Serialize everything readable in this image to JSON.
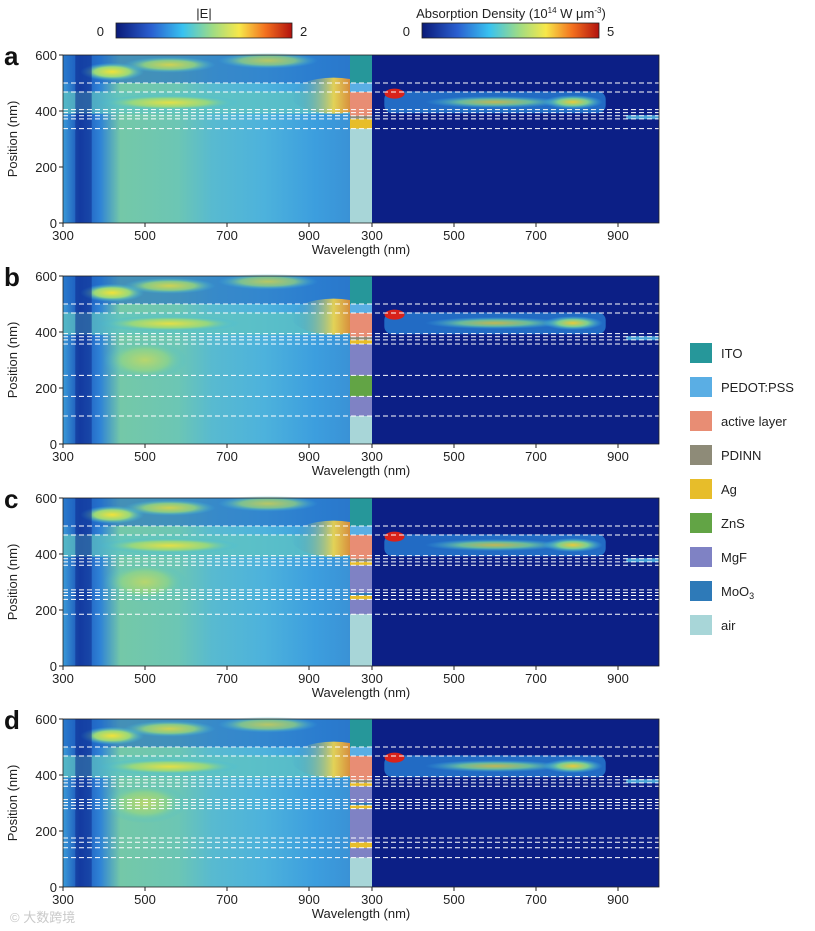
{
  "colorbars": {
    "field": {
      "title": "|E|",
      "min": "0",
      "max": "2"
    },
    "absorption": {
      "title_prefix": "Absorption Density (10",
      "title_exp": "14",
      "title_mid": " W μm",
      "title_exp2": "-3",
      "title_suffix": ")",
      "min": "0",
      "max": "5"
    }
  },
  "legend": [
    {
      "label": "ITO",
      "color": "#26979a"
    },
    {
      "label": "PEDOT:PSS",
      "color": "#5aaee4"
    },
    {
      "label": "active layer",
      "color": "#e88d74"
    },
    {
      "label": "PDINN",
      "color": "#8e8b78"
    },
    {
      "label": "Ag",
      "color": "#e7bd2a"
    },
    {
      "label": "ZnS",
      "color": "#62a445"
    },
    {
      "label": "MgF",
      "color": "#7f82c4"
    },
    {
      "label": "MoO",
      "sub": "3",
      "color": "#2e7ab8"
    },
    {
      "label": "air",
      "color": "#a8d6d8"
    }
  ],
  "watermark": "© 大数跨境",
  "chart_data": [
    {
      "panel": "a",
      "type": "heatmap",
      "xlabel": "Wavelength (nm)",
      "ylabel": "Position (nm)",
      "left_xticks": [
        "300",
        "500",
        "700",
        "900"
      ],
      "right_xticks": [
        "300",
        "500",
        "700",
        "900"
      ],
      "yticks": [
        "0",
        "200",
        "400",
        "600"
      ],
      "xlim": [
        300,
        1000
      ],
      "ylim": [
        0,
        600
      ],
      "interfaces_nm": [
        337,
        372,
        383,
        394,
        405,
        468,
        500
      ],
      "stack": [
        {
          "layer": "air",
          "from": 0,
          "to": 337
        },
        {
          "layer": "Ag",
          "from": 337,
          "to": 372
        },
        {
          "layer": "PDINN",
          "from": 372,
          "to": 383
        },
        {
          "layer": "active layer",
          "from": 383,
          "to": 468
        },
        {
          "layer": "PEDOT:PSS",
          "from": 468,
          "to": 500
        },
        {
          "layer": "ITO",
          "from": 500,
          "to": 600
        }
      ]
    },
    {
      "panel": "b",
      "type": "heatmap",
      "xlabel": "Wavelength (nm)",
      "ylabel": "Position (nm)",
      "left_xticks": [
        "300",
        "500",
        "700",
        "900"
      ],
      "right_xticks": [
        "300",
        "500",
        "700",
        "900"
      ],
      "yticks": [
        "0",
        "200",
        "400",
        "600"
      ],
      "xlim": [
        300,
        1000
      ],
      "ylim": [
        0,
        600
      ],
      "interfaces_nm": [
        100,
        170,
        245,
        357,
        372,
        383,
        394,
        468,
        500
      ],
      "stack": [
        {
          "layer": "air",
          "from": 0,
          "to": 100
        },
        {
          "layer": "MgF",
          "from": 100,
          "to": 170
        },
        {
          "layer": "ZnS",
          "from": 170,
          "to": 245
        },
        {
          "layer": "MgF",
          "from": 245,
          "to": 357
        },
        {
          "layer": "Ag",
          "from": 357,
          "to": 372
        },
        {
          "layer": "PDINN",
          "from": 372,
          "to": 383
        },
        {
          "layer": "active layer",
          "from": 383,
          "to": 468
        },
        {
          "layer": "PEDOT:PSS",
          "from": 468,
          "to": 500
        },
        {
          "layer": "ITO",
          "from": 500,
          "to": 600
        }
      ]
    },
    {
      "panel": "c",
      "type": "heatmap",
      "xlabel": "Wavelength (nm)",
      "ylabel": "Position (nm)",
      "left_xticks": [
        "300",
        "500",
        "700",
        "900"
      ],
      "right_xticks": [
        "300",
        "500",
        "700",
        "900"
      ],
      "yticks": [
        "0",
        "200",
        "400",
        "600"
      ],
      "xlim": [
        300,
        1000
      ],
      "ylim": [
        0,
        600
      ],
      "interfaces_nm": [
        185,
        238,
        252,
        262,
        272,
        360,
        372,
        383,
        394,
        468,
        500
      ],
      "stack": [
        {
          "layer": "air",
          "from": 0,
          "to": 185
        },
        {
          "layer": "MgF",
          "from": 185,
          "to": 238
        },
        {
          "layer": "Ag",
          "from": 238,
          "to": 252
        },
        {
          "layer": "MoO3",
          "from": 252,
          "to": 262
        },
        {
          "layer": "MgF",
          "from": 262,
          "to": 360
        },
        {
          "layer": "Ag",
          "from": 360,
          "to": 372
        },
        {
          "layer": "PDINN",
          "from": 372,
          "to": 383
        },
        {
          "layer": "active layer",
          "from": 383,
          "to": 468
        },
        {
          "layer": "PEDOT:PSS",
          "from": 468,
          "to": 500
        },
        {
          "layer": "ITO",
          "from": 500,
          "to": 600
        }
      ]
    },
    {
      "panel": "d",
      "type": "heatmap",
      "xlabel": "Wavelength (nm)",
      "ylabel": "Position (nm)",
      "left_xticks": [
        "300",
        "500",
        "700",
        "900"
      ],
      "right_xticks": [
        "300",
        "500",
        "700",
        "900"
      ],
      "yticks": [
        "0",
        "200",
        "400",
        "600"
      ],
      "xlim": [
        300,
        1000
      ],
      "ylim": [
        0,
        600
      ],
      "interfaces_nm": [
        105,
        140,
        160,
        175,
        280,
        292,
        302,
        312,
        360,
        372,
        383,
        394,
        468,
        500
      ],
      "stack": [
        {
          "layer": "air",
          "from": 0,
          "to": 105
        },
        {
          "layer": "MgF",
          "from": 105,
          "to": 140
        },
        {
          "layer": "Ag",
          "from": 140,
          "to": 160
        },
        {
          "layer": "MgF",
          "from": 160,
          "to": 280
        },
        {
          "layer": "Ag",
          "from": 280,
          "to": 292
        },
        {
          "layer": "MoO3",
          "from": 292,
          "to": 302
        },
        {
          "layer": "MgF",
          "from": 302,
          "to": 360
        },
        {
          "layer": "Ag",
          "from": 360,
          "to": 372
        },
        {
          "layer": "PDINN",
          "from": 372,
          "to": 383
        },
        {
          "layer": "active layer",
          "from": 383,
          "to": 468
        },
        {
          "layer": "PEDOT:PSS",
          "from": 468,
          "to": 500
        },
        {
          "layer": "ITO",
          "from": 500,
          "to": 600
        }
      ]
    }
  ]
}
